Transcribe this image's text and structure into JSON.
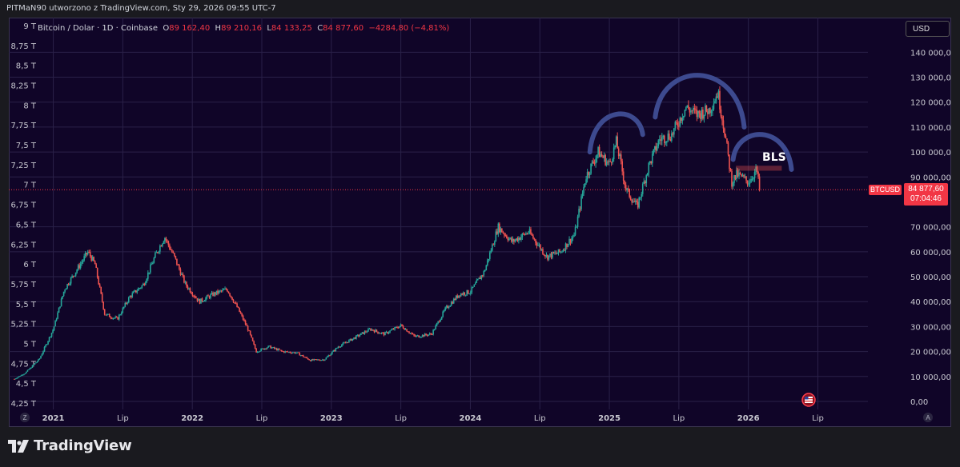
{
  "topbar": {
    "text": "PITMaN90 utworzono z TradingView.com, Sty 29, 2026 09:55 UTC-7"
  },
  "legend": {
    "symbol": "Bitcoin / Dolar · 1D · Coinbase",
    "open_label": "O",
    "open": "89 162,40",
    "high_label": "H",
    "high": "89 210,16",
    "low_label": "L",
    "low": "84 133,25",
    "close_label": "C",
    "close": "84 877,60",
    "change": "−4284,80 (−4,81%)"
  },
  "toolbar": {
    "currency": "USD"
  },
  "price_tag": {
    "symbol": "BTCUSD",
    "price": "84 877,60",
    "countdown": "07:04:46"
  },
  "annotation": {
    "text": "BLS"
  },
  "footer": {
    "brand": "TradingView"
  },
  "corner_buttons": {
    "left": "Z",
    "right": "A"
  },
  "colors": {
    "up": "#26a69a",
    "down": "#ef5350",
    "background": "#100528",
    "grid": "#2a2148",
    "arc": "#3d4a8f",
    "last_price": "#f23645"
  },
  "chart_data": {
    "type": "candlestick",
    "title": "Bitcoin / Dolar · 1D · Coinbase",
    "right_axis": {
      "ticks": [
        "140 000,00",
        "130 000,00",
        "120 000,00",
        "110 000,00",
        "100 000,00",
        "90 000,00",
        "70 000,00",
        "60 000,00",
        "50 000,00",
        "40 000,00",
        "30 000,00",
        "20 000,00",
        "10 000,00",
        "0,00"
      ],
      "values": [
        140000,
        130000,
        120000,
        110000,
        100000,
        90000,
        70000,
        60000,
        50000,
        40000,
        30000,
        20000,
        10000,
        0
      ],
      "range": [
        0,
        143000
      ]
    },
    "left_axis": {
      "ticks": [
        "9 T",
        "8,75 T",
        "8,5 T",
        "8,25 T",
        "8 T",
        "7,75 T",
        "7,5 T",
        "7,25 T",
        "7 T",
        "6,75 T",
        "6,5 T",
        "6,25 T",
        "6 T",
        "5,75 T",
        "5,5 T",
        "5,25 T",
        "5 T",
        "4,75 T",
        "4,5 T",
        "4,25 T"
      ]
    },
    "x_axis": {
      "ticks": [
        "2021",
        "Lip",
        "2022",
        "Lip",
        "2023",
        "Lip",
        "2024",
        "Lip",
        "2025",
        "Lip",
        "2026",
        "Lip"
      ],
      "values": [
        2021.0,
        2021.5,
        2022.0,
        2022.5,
        2023.0,
        2023.5,
        2024.0,
        2024.5,
        2025.0,
        2025.5,
        2026.0,
        2026.5
      ],
      "range": [
        2020.68,
        2026.86
      ]
    },
    "price_path": [
      [
        2020.72,
        9000
      ],
      [
        2020.8,
        11500
      ],
      [
        2020.9,
        17000
      ],
      [
        2021.0,
        29000
      ],
      [
        2021.08,
        45000
      ],
      [
        2021.16,
        52000
      ],
      [
        2021.25,
        60000
      ],
      [
        2021.3,
        55000
      ],
      [
        2021.37,
        35000
      ],
      [
        2021.46,
        33000
      ],
      [
        2021.55,
        42000
      ],
      [
        2021.65,
        47000
      ],
      [
        2021.73,
        58000
      ],
      [
        2021.8,
        66000
      ],
      [
        2021.87,
        58000
      ],
      [
        2021.95,
        47000
      ],
      [
        2022.05,
        40000
      ],
      [
        2022.15,
        43000
      ],
      [
        2022.25,
        45000
      ],
      [
        2022.33,
        37000
      ],
      [
        2022.4,
        29000
      ],
      [
        2022.46,
        20000
      ],
      [
        2022.55,
        22000
      ],
      [
        2022.65,
        20000
      ],
      [
        2022.75,
        19500
      ],
      [
        2022.85,
        16500
      ],
      [
        2022.95,
        16800
      ],
      [
        2023.05,
        22000
      ],
      [
        2023.15,
        25000
      ],
      [
        2023.28,
        29000
      ],
      [
        2023.38,
        27000
      ],
      [
        2023.5,
        30500
      ],
      [
        2023.6,
        26000
      ],
      [
        2023.72,
        27000
      ],
      [
        2023.82,
        37000
      ],
      [
        2023.92,
        43000
      ],
      [
        2024.0,
        44000
      ],
      [
        2024.1,
        52000
      ],
      [
        2024.2,
        70000
      ],
      [
        2024.3,
        64000
      ],
      [
        2024.42,
        68000
      ],
      [
        2024.55,
        58000
      ],
      [
        2024.65,
        60000
      ],
      [
        2024.75,
        67000
      ],
      [
        2024.83,
        90000
      ],
      [
        2024.92,
        100000
      ],
      [
        2025.0,
        95000
      ],
      [
        2025.05,
        104000
      ],
      [
        2025.12,
        85000
      ],
      [
        2025.2,
        78000
      ],
      [
        2025.28,
        94000
      ],
      [
        2025.36,
        105000
      ],
      [
        2025.45,
        107000
      ],
      [
        2025.55,
        118000
      ],
      [
        2025.63,
        115000
      ],
      [
        2025.72,
        117000
      ],
      [
        2025.78,
        124000
      ],
      [
        2025.83,
        108000
      ],
      [
        2025.88,
        88000
      ],
      [
        2025.92,
        91000
      ],
      [
        2026.0,
        88000
      ],
      [
        2026.06,
        93000
      ],
      [
        2026.08,
        84877
      ]
    ],
    "last_price": 84877.6,
    "annotations": [
      {
        "type": "arc",
        "label": "",
        "x_range": [
          2024.86,
          2025.24
        ]
      },
      {
        "type": "arc",
        "label": "",
        "x_range": [
          2025.33,
          2025.97
        ]
      },
      {
        "type": "arc",
        "label": "",
        "x_range": [
          2025.89,
          2026.31
        ]
      },
      {
        "type": "text",
        "label": "BLS",
        "x": 2026.1,
        "y": 94000
      }
    ],
    "grid": true
  }
}
